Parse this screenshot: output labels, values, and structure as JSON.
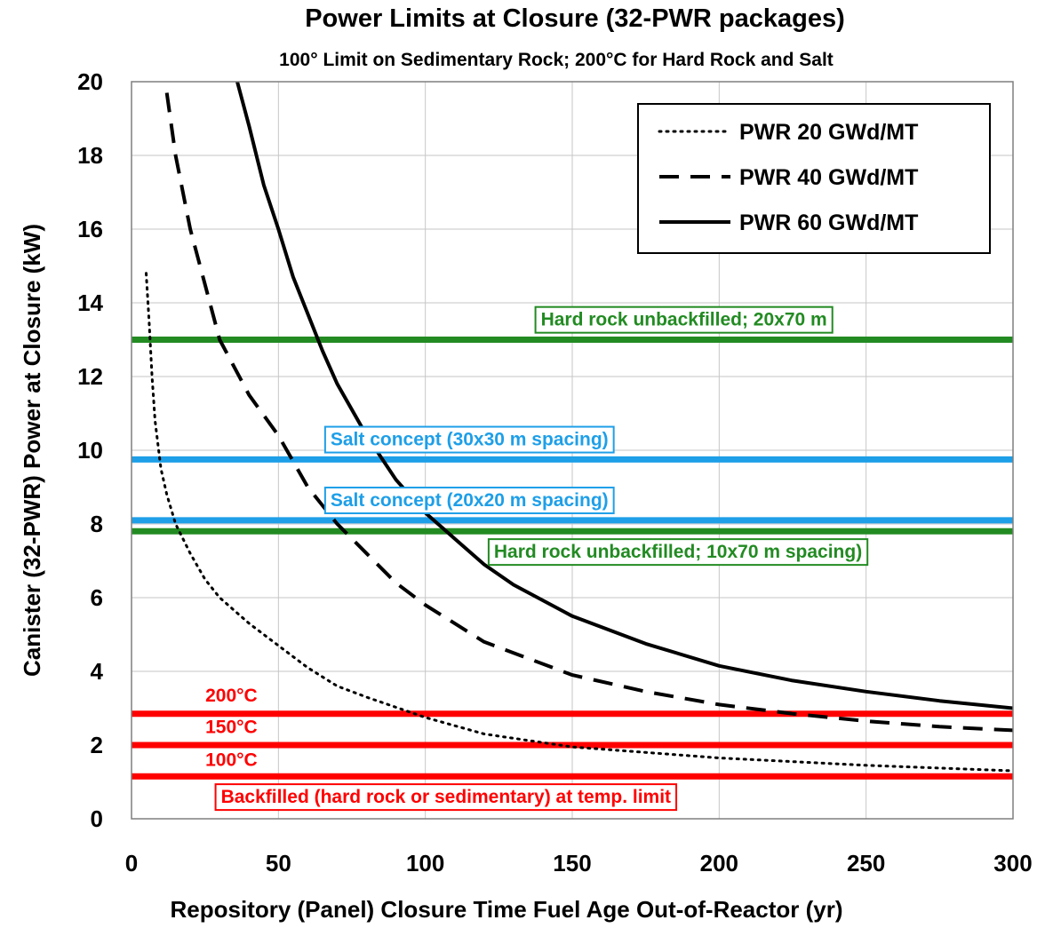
{
  "chart_data": {
    "type": "line",
    "title": "Power Limits at Closure (32-PWR packages)",
    "subtitle": "100° Limit on Sedimentary Rock; 200°C for Hard Rock and Salt",
    "xlabel": "Repository (Panel) Closure Time Fuel Age Out-of-Reactor (yr)",
    "ylabel": "Canister (32-PWR) Power at Closure (kW)",
    "xlim": [
      0,
      300
    ],
    "ylim": [
      0,
      20
    ],
    "xticks": [
      0,
      50,
      100,
      150,
      200,
      250,
      300
    ],
    "yticks": [
      0,
      2,
      4,
      6,
      8,
      10,
      12,
      14,
      16,
      18,
      20
    ],
    "grid": true,
    "legend_position": "top-right",
    "series": [
      {
        "name": "PWR 20 GWd/MT",
        "style": "dotted",
        "color": "#000000",
        "x": [
          5,
          6,
          7,
          8,
          10,
          12,
          15,
          20,
          25,
          30,
          40,
          50,
          60,
          70,
          80,
          100,
          120,
          150,
          175,
          200,
          250,
          300
        ],
        "y": [
          14.8,
          13.5,
          12.0,
          10.8,
          9.5,
          8.8,
          8.0,
          7.2,
          6.5,
          6.0,
          5.3,
          4.7,
          4.1,
          3.6,
          3.3,
          2.75,
          2.3,
          1.95,
          1.8,
          1.65,
          1.45,
          1.3
        ]
      },
      {
        "name": "PWR 40 GWd/MT",
        "style": "dashed",
        "color": "#000000",
        "x": [
          12,
          15,
          20,
          25,
          30,
          40,
          50,
          60,
          70,
          80,
          90,
          100,
          120,
          150,
          175,
          200,
          225,
          250,
          275,
          300
        ],
        "y": [
          19.7,
          18.0,
          16.0,
          14.5,
          13.0,
          11.5,
          10.4,
          9.0,
          8.0,
          7.2,
          6.4,
          5.8,
          4.8,
          3.9,
          3.45,
          3.1,
          2.85,
          2.65,
          2.5,
          2.4
        ]
      },
      {
        "name": "PWR 60 GWd/MT",
        "style": "solid",
        "color": "#000000",
        "x": [
          36,
          40,
          45,
          50,
          55,
          60,
          65,
          70,
          80,
          90,
          100,
          110,
          120,
          130,
          150,
          175,
          200,
          225,
          250,
          275,
          300
        ],
        "y": [
          20.0,
          18.8,
          17.2,
          16.0,
          14.7,
          13.7,
          12.7,
          11.8,
          10.4,
          9.2,
          8.3,
          7.6,
          6.9,
          6.35,
          5.5,
          4.75,
          4.15,
          3.75,
          3.45,
          3.2,
          3.0
        ]
      }
    ],
    "reference_lines": [
      {
        "y": 13.0,
        "color": "#228B22"
      },
      {
        "y": 9.75,
        "color": "#1E9FE8"
      },
      {
        "y": 8.1,
        "color": "#1E9FE8"
      },
      {
        "y": 7.8,
        "color": "#228B22"
      },
      {
        "y": 2.85,
        "color": "#FF0000"
      },
      {
        "y": 2.0,
        "color": "#FF0000"
      },
      {
        "y": 1.15,
        "color": "#FF0000"
      }
    ],
    "annotations": [
      {
        "text": "Hard rock unbackfilled; 20x70 m",
        "x": 188,
        "y": 13.55,
        "color": "#228B22",
        "boxed": true
      },
      {
        "text": "Salt concept (30x30 m spacing)",
        "x": 115,
        "y": 10.3,
        "color": "#1E9FE8",
        "boxed": true
      },
      {
        "text": "Salt concept (20x20 m spacing)",
        "x": 115,
        "y": 8.65,
        "color": "#1E9FE8",
        "boxed": true
      },
      {
        "text": "Hard rock unbackfilled; 10x70 m spacing)",
        "x": 186,
        "y": 7.25,
        "color": "#228B22",
        "boxed": true
      },
      {
        "text": "200°C",
        "x": 34,
        "y": 3.35,
        "color": "#FF0000",
        "boxed": false
      },
      {
        "text": "150°C",
        "x": 34,
        "y": 2.5,
        "color": "#FF0000",
        "boxed": false
      },
      {
        "text": "100°C",
        "x": 34,
        "y": 1.6,
        "color": "#FF0000",
        "boxed": false
      },
      {
        "text": "Backfilled (hard rock or sedimentary) at temp. limit",
        "x": 107,
        "y": 0.6,
        "color": "#FF0000",
        "boxed": true
      }
    ]
  }
}
